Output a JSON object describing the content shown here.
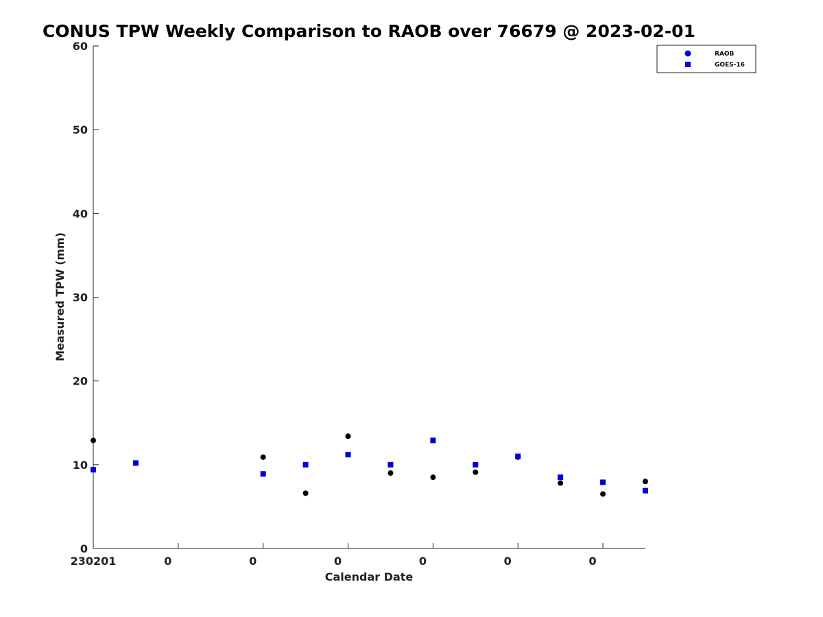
{
  "chart_data": {
    "type": "scatter",
    "title": "CONUS TPW Weekly Comparison to RAOB over 76679 @ 2023-02-01",
    "xlabel": "Calendar Date",
    "ylabel": "Measured TPW (mm)",
    "xlim": [
      0,
      6.5
    ],
    "ylim": [
      0,
      60
    ],
    "y_ticks": [
      0,
      10,
      20,
      30,
      40,
      50,
      60
    ],
    "x_ticks": [
      0,
      1,
      2,
      3,
      4,
      5,
      6
    ],
    "x_tick_labels": [
      "230201",
      "0",
      "0",
      "0",
      "0",
      "0",
      "0"
    ],
    "grid": false,
    "legend_position": "top-right",
    "series": [
      {
        "name": "RAOB",
        "marker": "circle",
        "color": "#000000",
        "legend_color": "#0000dd",
        "x": [
          0,
          0.5,
          2,
          2.5,
          3,
          3.5,
          4,
          4.5,
          5,
          5.5,
          6,
          6.5
        ],
        "y": [
          12.9,
          10.2,
          10.9,
          6.6,
          13.4,
          9.0,
          8.5,
          9.1,
          10.9,
          7.8,
          6.5,
          8.0
        ]
      },
      {
        "name": "GOES-16",
        "marker": "square",
        "color": "#0000dd",
        "x": [
          0,
          0.5,
          2,
          2.5,
          3,
          3.5,
          4,
          4.5,
          5,
          5.5,
          6,
          6.5
        ],
        "y": [
          9.4,
          10.2,
          8.9,
          10.0,
          11.2,
          10.0,
          12.9,
          10.0,
          11.0,
          8.5,
          7.9,
          6.9
        ]
      }
    ]
  }
}
